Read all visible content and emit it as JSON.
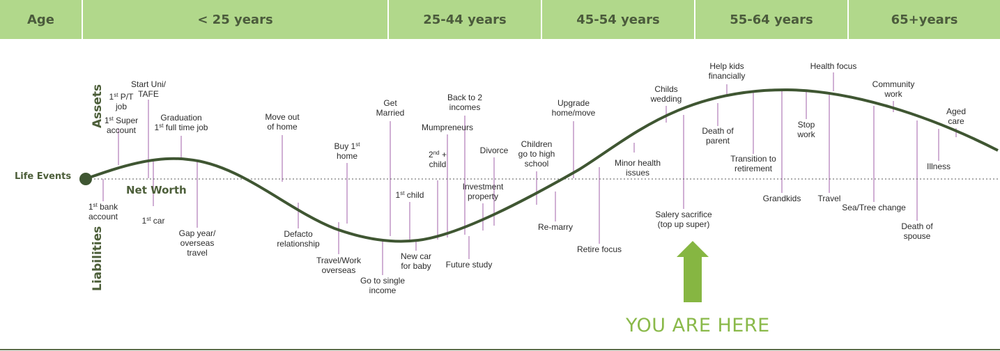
{
  "header": {
    "cells": [
      {
        "label": "Age"
      },
      {
        "label": "< 25 years"
      },
      {
        "label": "25-44 years"
      },
      {
        "label": "45-54 years"
      },
      {
        "label": "55-64 years"
      },
      {
        "label": "65+years"
      }
    ]
  },
  "axis": {
    "assets": "Assets",
    "liabilities": "Liabilities",
    "life_events": "Life Events",
    "net_worth": "Net Worth"
  },
  "you_are_here": "YOU ARE HERE",
  "colors": {
    "header_bg": "#b1d88b",
    "header_text": "#4b5b3c",
    "curve": "#3f5632",
    "lines": "#b07ab8",
    "arrow": "#86b642",
    "here_text": "#8ab94a"
  },
  "events": [
    {
      "id": "first-pt-job",
      "lines": [
        "1st P/T",
        "job"
      ],
      "sup": [
        [
          0,
          "st"
        ]
      ]
    },
    {
      "id": "first-super",
      "lines": [
        "1st Super",
        "account"
      ],
      "sup": [
        [
          0,
          "st"
        ]
      ]
    },
    {
      "id": "start-uni",
      "lines": [
        "Start Uni/",
        "TAFE"
      ]
    },
    {
      "id": "graduation",
      "lines": [
        "Graduation",
        "1st full time job"
      ],
      "sup": [
        [
          1,
          "st"
        ]
      ]
    },
    {
      "id": "move-out",
      "lines": [
        "Move out",
        "of home"
      ]
    },
    {
      "id": "buy-home",
      "lines": [
        "Buy 1st",
        "home"
      ],
      "sup": [
        [
          0,
          "st"
        ]
      ]
    },
    {
      "id": "get-married",
      "lines": [
        "Get",
        "Married"
      ]
    },
    {
      "id": "back-to-2-incomes",
      "lines": [
        "Back to 2",
        "incomes"
      ]
    },
    {
      "id": "mumpreneurs",
      "lines": [
        "Mumpreneurs"
      ]
    },
    {
      "id": "second-child",
      "lines": [
        "2nd +",
        "child"
      ],
      "sup": [
        [
          0,
          "nd"
        ]
      ]
    },
    {
      "id": "divorce",
      "lines": [
        "Divorce"
      ]
    },
    {
      "id": "investment-property",
      "lines": [
        "Investment",
        "property"
      ]
    },
    {
      "id": "children-high-school",
      "lines": [
        "Children",
        "go to high",
        "school"
      ]
    },
    {
      "id": "upgrade-home",
      "lines": [
        "Upgrade",
        "home/move"
      ]
    },
    {
      "id": "minor-health",
      "lines": [
        "Minor health",
        "issues"
      ]
    },
    {
      "id": "childs-wedding",
      "lines": [
        "Childs",
        "wedding"
      ]
    },
    {
      "id": "help-kids",
      "lines": [
        "Help kids",
        "financially"
      ]
    },
    {
      "id": "death-of-parent",
      "lines": [
        "Death of",
        "parent"
      ]
    },
    {
      "id": "transition-retirement",
      "lines": [
        "Transition to",
        "retirement"
      ]
    },
    {
      "id": "health-focus",
      "lines": [
        "Health focus"
      ]
    },
    {
      "id": "stop-work",
      "lines": [
        "Stop",
        "work"
      ]
    },
    {
      "id": "community-work",
      "lines": [
        "Community",
        "work"
      ]
    },
    {
      "id": "aged-care",
      "lines": [
        "Aged",
        "care"
      ]
    },
    {
      "id": "illness",
      "lines": [
        "Illness"
      ]
    },
    {
      "id": "first-bank",
      "lines": [
        "1st bank",
        "account"
      ],
      "sup": [
        [
          0,
          "st"
        ]
      ]
    },
    {
      "id": "first-car",
      "lines": [
        "1st car"
      ],
      "sup": [
        [
          0,
          "st"
        ]
      ]
    },
    {
      "id": "gap-year",
      "lines": [
        "Gap year/",
        "overseas",
        "travel"
      ]
    },
    {
      "id": "defacto",
      "lines": [
        "Defacto",
        "relationship"
      ]
    },
    {
      "id": "travel-work",
      "lines": [
        "Travel/Work",
        "overseas"
      ]
    },
    {
      "id": "single-income",
      "lines": [
        "Go to single",
        "income"
      ]
    },
    {
      "id": "first-child",
      "lines": [
        "1st child"
      ],
      "sup": [
        [
          0,
          "st"
        ]
      ]
    },
    {
      "id": "new-car",
      "lines": [
        "New car",
        "for baby"
      ]
    },
    {
      "id": "future-study",
      "lines": [
        "Future study"
      ]
    },
    {
      "id": "re-marry",
      "lines": [
        "Re-marry"
      ]
    },
    {
      "id": "retire-focus",
      "lines": [
        "Retire focus"
      ]
    },
    {
      "id": "salary-sacrifice",
      "lines": [
        "Salery sacrifice",
        "(top up super)"
      ]
    },
    {
      "id": "grandkids",
      "lines": [
        "Grandkids"
      ]
    },
    {
      "id": "travel",
      "lines": [
        "Travel"
      ]
    },
    {
      "id": "sea-tree-change",
      "lines": [
        "Sea/Tree change"
      ]
    },
    {
      "id": "death-of-spouse",
      "lines": [
        "Death of",
        "spouse"
      ]
    }
  ]
}
